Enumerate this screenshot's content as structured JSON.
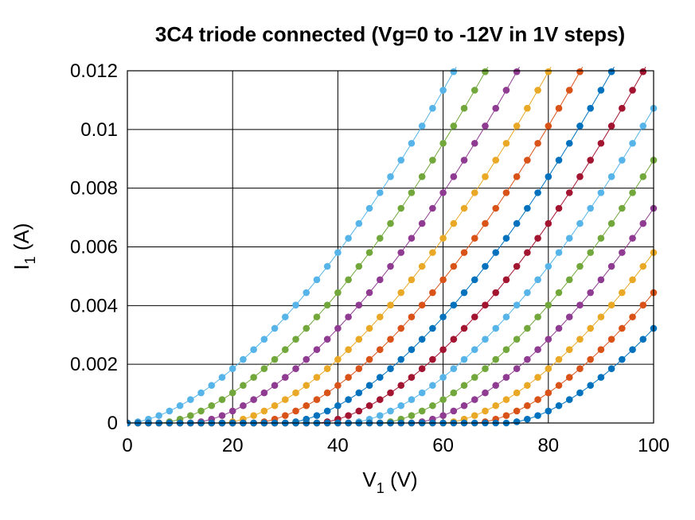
{
  "chart_data": {
    "type": "scatter",
    "title": "3C4 triode connected (Vg=0 to -12V in 1V steps)",
    "xlabel": {
      "main": "V",
      "sub": "1",
      "unit": " (V)"
    },
    "ylabel": {
      "main": "I",
      "sub": "1",
      "unit": " (A)"
    },
    "xlim": [
      0,
      100
    ],
    "ylim": [
      0,
      0.012
    ],
    "x_ticks": [
      "0",
      "20",
      "40",
      "60",
      "80",
      "100"
    ],
    "y_ticks": [
      "0",
      "0.002",
      "0.004",
      "0.006",
      "0.008",
      "0.01",
      "0.012"
    ],
    "grid": true,
    "x_step": 2,
    "series": [
      {
        "vg": 0,
        "color": "#56b4e9",
        "x0": 0,
        "k": 1.32e-05,
        "n": 1.65
      },
      {
        "vg": -1,
        "color": "#71a73b",
        "x0": 6,
        "k": 1.32e-05,
        "n": 1.65
      },
      {
        "vg": -2,
        "color": "#8e3b91",
        "x0": 12,
        "k": 1.32e-05,
        "n": 1.65
      },
      {
        "vg": -3,
        "color": "#e9a825",
        "x0": 18,
        "k": 1.32e-05,
        "n": 1.65
      },
      {
        "vg": -4,
        "color": "#d95319",
        "x0": 24,
        "k": 1.32e-05,
        "n": 1.65
      },
      {
        "vg": -5,
        "color": "#0072bd",
        "x0": 30,
        "k": 1.32e-05,
        "n": 1.65
      },
      {
        "vg": -6,
        "color": "#a2142f",
        "x0": 36,
        "k": 1.32e-05,
        "n": 1.65
      },
      {
        "vg": -7,
        "color": "#56b4e9",
        "x0": 42,
        "k": 1.32e-05,
        "n": 1.65
      },
      {
        "vg": -8,
        "color": "#71a73b",
        "x0": 48,
        "k": 1.32e-05,
        "n": 1.65
      },
      {
        "vg": -9,
        "color": "#8e3b91",
        "x0": 54,
        "k": 1.32e-05,
        "n": 1.65
      },
      {
        "vg": -10,
        "color": "#e9a825",
        "x0": 60,
        "k": 1.32e-05,
        "n": 1.65
      },
      {
        "vg": -11,
        "color": "#d95319",
        "x0": 66,
        "k": 1.32e-05,
        "n": 1.65
      },
      {
        "vg": -12,
        "color": "#0072bd",
        "x0": 72,
        "k": 1.32e-05,
        "n": 1.65
      }
    ]
  }
}
